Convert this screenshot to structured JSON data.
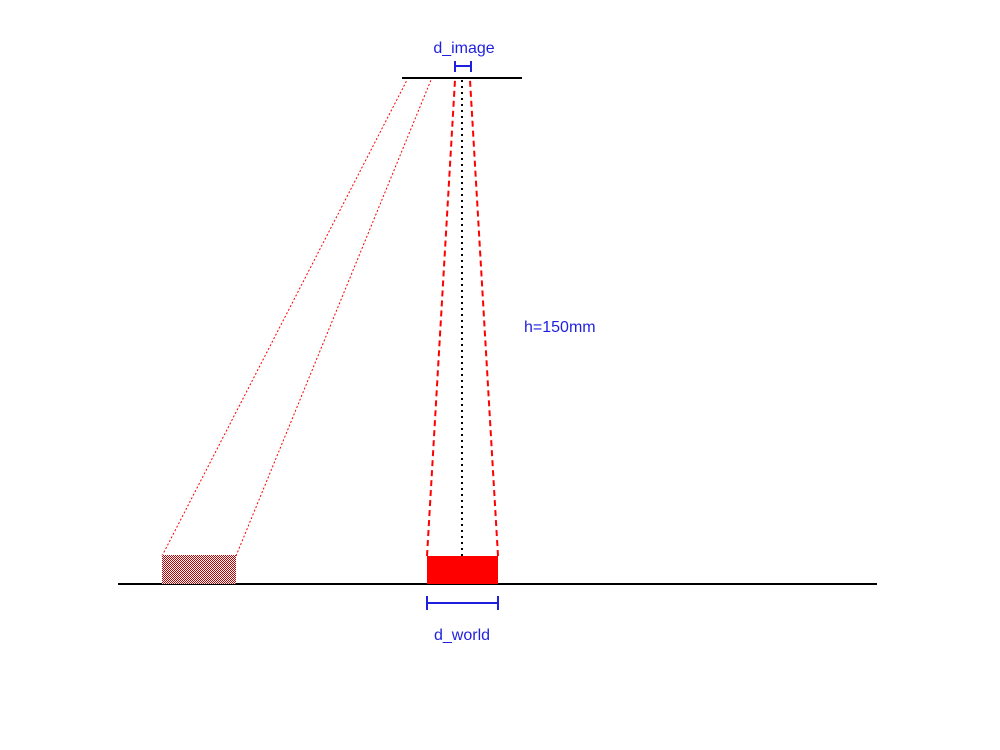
{
  "labels": {
    "image_width": "d_image",
    "world_width": "d_world",
    "height": "h=150mm"
  },
  "colors": {
    "baseline": "#000000",
    "rays": "#ff0000",
    "object": "#ff0000",
    "dimension": "#1f1fe0",
    "axis": "#000000"
  }
}
